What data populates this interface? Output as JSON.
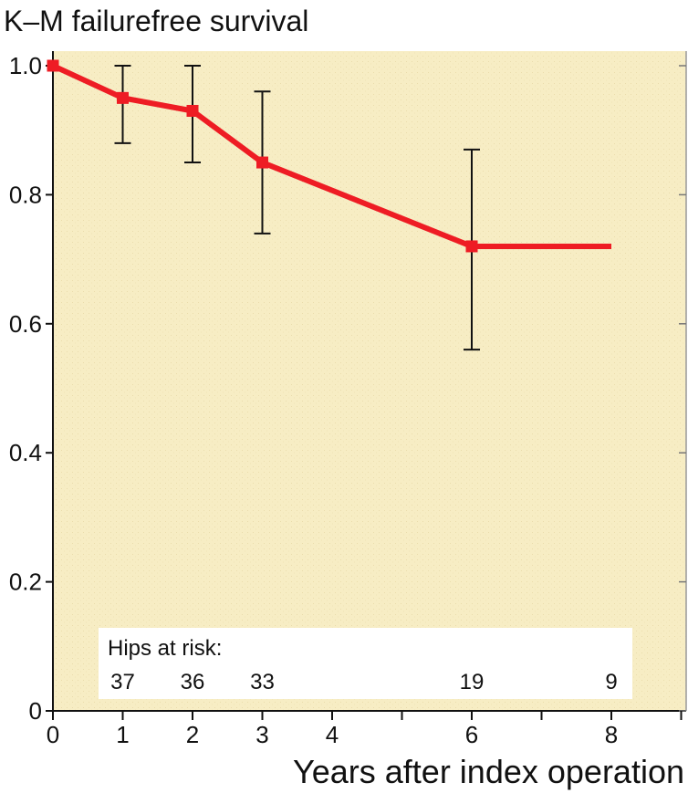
{
  "chart_data": {
    "type": "line",
    "title": "",
    "ylabel": "K–M failurefree survival",
    "xlabel": "Years after index operation",
    "xlim": [
      0,
      9
    ],
    "ylim": [
      0,
      1.0
    ],
    "x_ticks": [
      0,
      1,
      2,
      3,
      4,
      6,
      8
    ],
    "x_minor_ticks": [
      5,
      7,
      9
    ],
    "y_ticks": [
      0,
      0.2,
      0.4,
      0.6,
      0.8,
      1.0
    ],
    "y_tick_labels": [
      "0",
      "0.2",
      "0.4",
      "0.6",
      "0.8",
      "1.0"
    ],
    "grid": false,
    "background_color": "#f7edc4",
    "series": [
      {
        "color": "#ee1c24",
        "x": [
          0,
          1,
          2,
          3,
          6,
          8
        ],
        "y": [
          1.0,
          0.95,
          0.93,
          0.85,
          0.72,
          0.72
        ],
        "markers": [
          true,
          true,
          true,
          true,
          true,
          false
        ],
        "error_bars": [
          {
            "x": 1,
            "low": 0.88,
            "high": 1.0
          },
          {
            "x": 2,
            "low": 0.85,
            "high": 1.0
          },
          {
            "x": 3,
            "low": 0.74,
            "high": 0.96
          },
          {
            "x": 6,
            "low": 0.56,
            "high": 0.87
          }
        ]
      }
    ],
    "risk_table": {
      "label": "Hips at risk:",
      "entries": [
        {
          "x": 1,
          "value": "37"
        },
        {
          "x": 2,
          "value": "36"
        },
        {
          "x": 3,
          "value": "33"
        },
        {
          "x": 6,
          "value": "19"
        },
        {
          "x": 8,
          "value": "9"
        }
      ]
    }
  }
}
